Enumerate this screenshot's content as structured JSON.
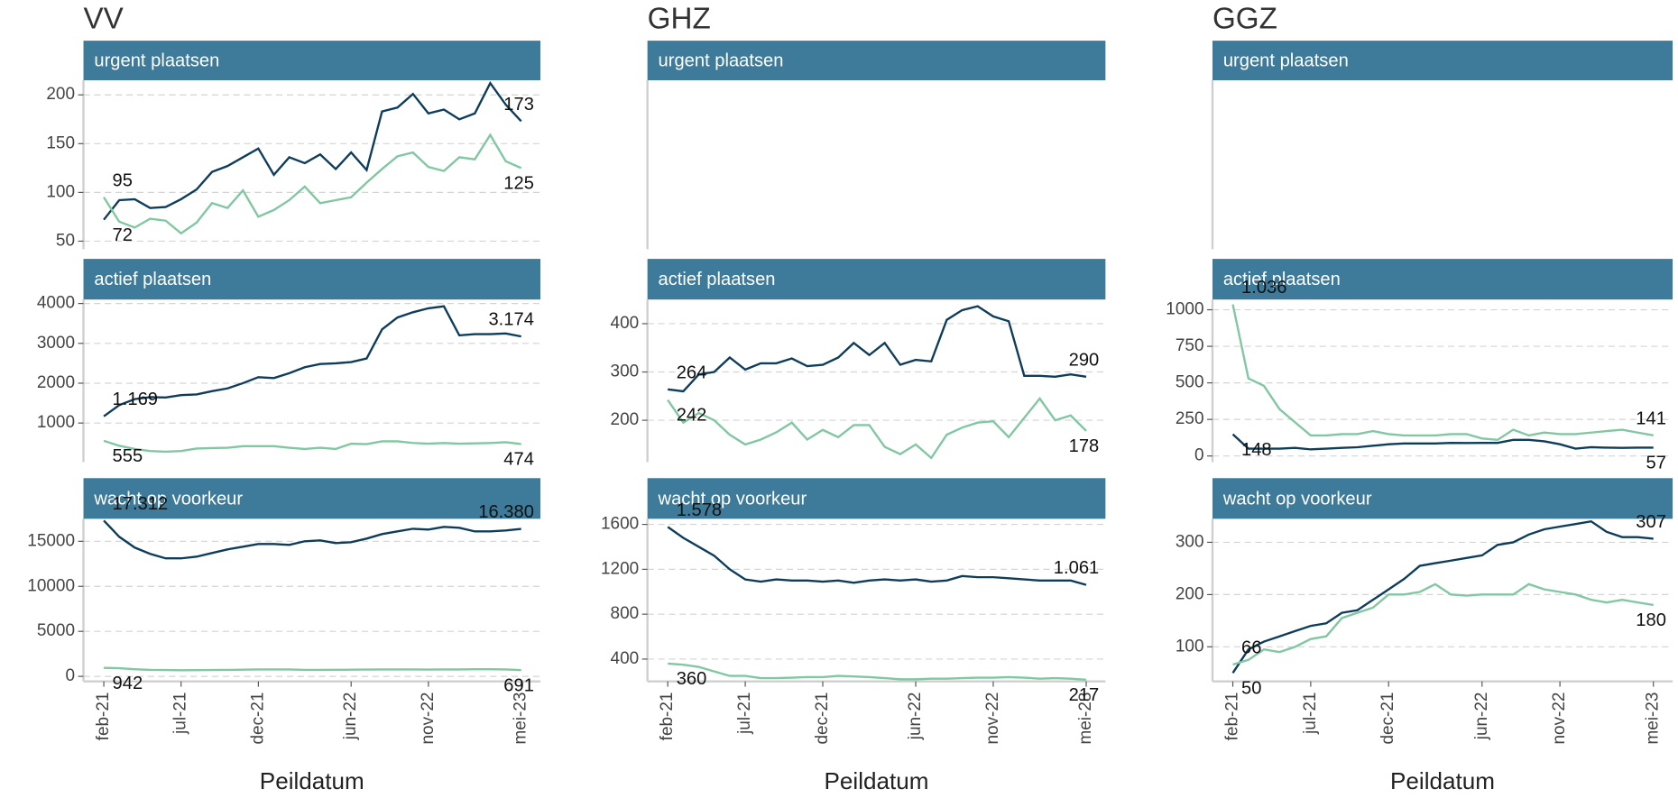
{
  "columns": [
    "VV",
    "GHZ",
    "GGZ"
  ],
  "x": [
    "feb-21",
    null,
    null,
    null,
    null,
    "jul-21",
    null,
    null,
    null,
    null,
    "dec-21",
    null,
    null,
    null,
    null,
    null,
    "jun-22",
    null,
    null,
    null,
    null,
    "nov-22",
    null,
    null,
    null,
    null,
    null,
    "mei-23"
  ],
  "x_label": "Peildatum",
  "chart_data": [
    {
      "type": "line",
      "title": "urgent plaatsen",
      "ylim": [
        45,
        215
      ],
      "yticks": [
        50,
        100,
        150,
        200
      ],
      "grid": true,
      "series": [
        {
          "color": "#0e3d5b",
          "values": [
            72,
            92,
            93,
            84,
            85,
            93,
            103,
            121,
            127,
            136,
            145,
            118,
            136,
            130,
            139,
            124,
            141,
            123,
            183,
            187,
            201,
            181,
            185,
            175,
            181,
            212,
            190,
            173
          ],
          "value_labels": [
            "72",
            null,
            null,
            null,
            null,
            null,
            null,
            null,
            null,
            null,
            null,
            null,
            null,
            null,
            null,
            null,
            null,
            null,
            null,
            null,
            null,
            null,
            null,
            null,
            null,
            null,
            null,
            "173"
          ]
        },
        {
          "color": "#80c7a2",
          "values": [
            95,
            70,
            64,
            73,
            71,
            58,
            69,
            89,
            84,
            102,
            75,
            82,
            92,
            106,
            89,
            92,
            95,
            110,
            124,
            137,
            141,
            126,
            122,
            136,
            134,
            159,
            132,
            125
          ],
          "value_labels": [
            "95",
            null,
            null,
            null,
            null,
            null,
            null,
            null,
            null,
            null,
            null,
            null,
            null,
            null,
            null,
            null,
            null,
            null,
            null,
            null,
            null,
            null,
            null,
            null,
            null,
            null,
            null,
            "125"
          ]
        }
      ]
    },
    {
      "type": "line",
      "title": "urgent plaatsen"
    },
    {
      "type": "line",
      "title": "urgent plaatsen"
    },
    {
      "type": "line",
      "title": "actief plaatsen",
      "ylim": [
        100,
        4100
      ],
      "yticks": [
        1000,
        2000,
        3000,
        4000
      ],
      "grid": true,
      "series": [
        {
          "color": "#0e3d5b",
          "values": [
            1169,
            1450,
            1600,
            1650,
            1640,
            1700,
            1720,
            1800,
            1870,
            2000,
            2150,
            2130,
            2250,
            2400,
            2480,
            2500,
            2530,
            2620,
            3350,
            3650,
            3780,
            3880,
            3930,
            3200,
            3230,
            3230,
            3250,
            3174
          ],
          "value_labels": [
            "1.169",
            null,
            null,
            null,
            null,
            null,
            null,
            null,
            null,
            null,
            null,
            null,
            null,
            null,
            null,
            null,
            null,
            null,
            null,
            null,
            null,
            null,
            null,
            null,
            null,
            null,
            null,
            "3.174"
          ]
        },
        {
          "color": "#80c7a2",
          "values": [
            555,
            430,
            350,
            300,
            280,
            300,
            360,
            370,
            380,
            420,
            420,
            420,
            380,
            350,
            380,
            350,
            480,
            470,
            540,
            540,
            500,
            480,
            500,
            480,
            490,
            500,
            520,
            474
          ],
          "value_labels": [
            "555",
            null,
            null,
            null,
            null,
            null,
            null,
            null,
            null,
            null,
            null,
            null,
            null,
            null,
            null,
            null,
            null,
            null,
            null,
            null,
            null,
            null,
            null,
            null,
            null,
            null,
            null,
            "474"
          ]
        }
      ]
    },
    {
      "type": "line",
      "title": "actief plaatsen",
      "ylim": [
        120,
        450
      ],
      "yticks": [
        200,
        300,
        400
      ],
      "grid": true,
      "series": [
        {
          "color": "#0e3d5b",
          "values": [
            264,
            260,
            295,
            300,
            330,
            305,
            318,
            318,
            328,
            312,
            315,
            330,
            360,
            335,
            360,
            315,
            325,
            322,
            408,
            428,
            436,
            415,
            405,
            292,
            292,
            290,
            295,
            290
          ],
          "value_labels": [
            "264",
            null,
            null,
            null,
            null,
            null,
            null,
            null,
            null,
            null,
            null,
            null,
            null,
            null,
            null,
            null,
            null,
            null,
            null,
            null,
            null,
            null,
            null,
            null,
            null,
            null,
            null,
            "290"
          ]
        },
        {
          "color": "#80c7a2",
          "values": [
            242,
            195,
            215,
            200,
            170,
            150,
            160,
            175,
            195,
            160,
            180,
            165,
            190,
            190,
            145,
            130,
            150,
            122,
            170,
            185,
            195,
            198,
            165,
            205,
            245,
            200,
            210,
            178
          ],
          "value_labels": [
            "242",
            null,
            null,
            null,
            null,
            null,
            null,
            null,
            null,
            null,
            null,
            null,
            null,
            null,
            null,
            null,
            null,
            null,
            null,
            null,
            null,
            null,
            null,
            null,
            null,
            null,
            null,
            "178"
          ]
        }
      ]
    },
    {
      "type": "line",
      "title": "actief plaatsen",
      "ylim": [
        -20,
        1070
      ],
      "yticks": [
        0,
        250,
        500,
        750,
        1000
      ],
      "grid": true,
      "series": [
        {
          "color": "#0e3d5b",
          "values": [
            148,
            50,
            50,
            50,
            55,
            45,
            50,
            55,
            60,
            70,
            80,
            85,
            85,
            85,
            90,
            88,
            90,
            90,
            110,
            110,
            100,
            80,
            50,
            60,
            57,
            55,
            57,
            57
          ],
          "value_labels": [
            "148",
            null,
            null,
            null,
            null,
            null,
            null,
            null,
            null,
            null,
            null,
            null,
            null,
            null,
            null,
            null,
            null,
            null,
            null,
            null,
            null,
            null,
            null,
            null,
            null,
            null,
            null,
            "57"
          ]
        },
        {
          "color": "#80c7a2",
          "values": [
            1036,
            530,
            480,
            320,
            230,
            140,
            140,
            150,
            150,
            170,
            150,
            140,
            140,
            140,
            150,
            150,
            120,
            110,
            180,
            140,
            160,
            150,
            150,
            160,
            170,
            180,
            160,
            141
          ],
          "value_labels": [
            "1.036",
            null,
            null,
            null,
            null,
            null,
            null,
            null,
            null,
            null,
            null,
            null,
            null,
            null,
            null,
            null,
            null,
            null,
            null,
            null,
            null,
            null,
            null,
            null,
            null,
            null,
            null,
            "141"
          ]
        }
      ]
    },
    {
      "type": "line",
      "title": "wacht op voorkeur",
      "ylim": [
        -200,
        17500
      ],
      "yticks": [
        0,
        5000,
        10000,
        15000
      ],
      "grid": true,
      "series": [
        {
          "color": "#0e3d5b",
          "values": [
            17312,
            15500,
            14300,
            13600,
            13100,
            13100,
            13300,
            13700,
            14100,
            14400,
            14700,
            14700,
            14600,
            15000,
            15100,
            14800,
            14900,
            15300,
            15800,
            16100,
            16400,
            16300,
            16600,
            16500,
            16100,
            16100,
            16200,
            16380
          ],
          "value_labels": [
            "17.312",
            null,
            null,
            null,
            null,
            null,
            null,
            null,
            null,
            null,
            null,
            null,
            null,
            null,
            null,
            null,
            null,
            null,
            null,
            null,
            null,
            null,
            null,
            null,
            null,
            null,
            null,
            "16.380"
          ]
        },
        {
          "color": "#80c7a2",
          "values": [
            942,
            900,
            800,
            720,
            700,
            680,
            690,
            700,
            720,
            740,
            760,
            770,
            760,
            720,
            720,
            730,
            740,
            750,
            760,
            770,
            760,
            750,
            760,
            780,
            800,
            800,
            760,
            691
          ],
          "value_labels": [
            "942",
            null,
            null,
            null,
            null,
            null,
            null,
            null,
            null,
            null,
            null,
            null,
            null,
            null,
            null,
            null,
            null,
            null,
            null,
            null,
            null,
            null,
            null,
            null,
            null,
            null,
            null,
            "691"
          ]
        }
      ]
    },
    {
      "type": "line",
      "title": "wacht op voorkeur",
      "ylim": [
        230,
        1650
      ],
      "yticks": [
        400,
        800,
        1200,
        1600
      ],
      "grid": true,
      "series": [
        {
          "color": "#0e3d5b",
          "values": [
            1578,
            1480,
            1400,
            1320,
            1200,
            1110,
            1090,
            1110,
            1100,
            1100,
            1090,
            1100,
            1080,
            1100,
            1110,
            1100,
            1110,
            1090,
            1100,
            1140,
            1130,
            1130,
            1120,
            1110,
            1100,
            1100,
            1100,
            1061
          ],
          "value_labels": [
            "1.578",
            null,
            null,
            null,
            null,
            null,
            null,
            null,
            null,
            null,
            null,
            null,
            null,
            null,
            null,
            null,
            null,
            null,
            null,
            null,
            null,
            null,
            null,
            null,
            null,
            null,
            null,
            "1.061"
          ]
        },
        {
          "color": "#80c7a2",
          "values": [
            360,
            350,
            330,
            290,
            250,
            250,
            230,
            230,
            235,
            240,
            240,
            250,
            245,
            240,
            230,
            220,
            220,
            225,
            225,
            230,
            235,
            235,
            240,
            235,
            225,
            230,
            225,
            217
          ],
          "value_labels": [
            "360",
            null,
            null,
            null,
            null,
            null,
            null,
            null,
            null,
            null,
            null,
            null,
            null,
            null,
            null,
            null,
            null,
            null,
            null,
            null,
            null,
            null,
            null,
            null,
            null,
            null,
            null,
            "217"
          ]
        }
      ]
    },
    {
      "type": "line",
      "title": "wacht op voorkeur",
      "ylim": [
        40,
        345
      ],
      "yticks": [
        100,
        200,
        300
      ],
      "grid": true,
      "series": [
        {
          "color": "#0e3d5b",
          "values": [
            50,
            95,
            110,
            120,
            130,
            140,
            145,
            165,
            170,
            190,
            210,
            230,
            255,
            260,
            265,
            270,
            275,
            295,
            300,
            315,
            325,
            330,
            335,
            340,
            320,
            310,
            310,
            307
          ],
          "value_labels": [
            "50",
            null,
            null,
            null,
            null,
            null,
            null,
            null,
            null,
            null,
            null,
            null,
            null,
            null,
            null,
            null,
            null,
            null,
            null,
            null,
            null,
            null,
            null,
            null,
            null,
            null,
            null,
            "307"
          ]
        },
        {
          "color": "#80c7a2",
          "values": [
            66,
            75,
            95,
            90,
            100,
            115,
            120,
            155,
            165,
            175,
            200,
            200,
            205,
            220,
            200,
            198,
            200,
            200,
            200,
            220,
            210,
            205,
            200,
            190,
            185,
            190,
            185,
            180
          ],
          "value_labels": [
            "66",
            null,
            null,
            null,
            null,
            null,
            null,
            null,
            null,
            null,
            null,
            null,
            null,
            null,
            null,
            null,
            null,
            null,
            null,
            null,
            null,
            null,
            null,
            null,
            null,
            null,
            null,
            "180"
          ]
        }
      ]
    }
  ]
}
